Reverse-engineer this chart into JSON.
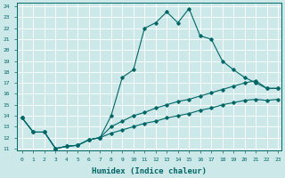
{
  "xlabel": "Humidex (Indice chaleur)",
  "ylabel": "",
  "bg_color": "#cce8e8",
  "grid_color": "#ffffff",
  "line_color": "#006666",
  "xlim": [
    -0.5,
    23.3
  ],
  "ylim": [
    10.8,
    24.3
  ],
  "yticks": [
    11,
    12,
    13,
    14,
    15,
    16,
    17,
    18,
    19,
    20,
    21,
    22,
    23,
    24
  ],
  "xticks": [
    0,
    1,
    2,
    3,
    4,
    5,
    6,
    7,
    8,
    9,
    10,
    11,
    12,
    13,
    14,
    15,
    16,
    17,
    18,
    19,
    20,
    21,
    22,
    23
  ],
  "line1_x": [
    0,
    1,
    2,
    3,
    4,
    5,
    6,
    7,
    8,
    9,
    10,
    11,
    12,
    13,
    14,
    15,
    16,
    17,
    18,
    19,
    20,
    21,
    22,
    23
  ],
  "line1_y": [
    13.8,
    12.5,
    12.5,
    11.0,
    11.2,
    11.3,
    11.8,
    12.0,
    14.0,
    17.5,
    18.2,
    22.0,
    22.5,
    23.5,
    22.5,
    23.8,
    21.3,
    21.0,
    19.0,
    18.2,
    17.5,
    17.0,
    16.5,
    16.5
  ],
  "line2_x": [
    0,
    1,
    2,
    3,
    4,
    5,
    6,
    7,
    8,
    9,
    10,
    11,
    12,
    13,
    14,
    15,
    16,
    17,
    18,
    19,
    20,
    21,
    22,
    23
  ],
  "line2_y": [
    13.8,
    12.5,
    12.5,
    11.0,
    11.2,
    11.3,
    11.8,
    12.0,
    13.0,
    13.5,
    14.0,
    14.3,
    14.7,
    15.0,
    15.3,
    15.5,
    15.8,
    16.1,
    16.4,
    16.7,
    17.0,
    17.2,
    16.5,
    16.5
  ],
  "line3_x": [
    0,
    1,
    2,
    3,
    4,
    5,
    6,
    7,
    8,
    9,
    10,
    11,
    12,
    13,
    14,
    15,
    16,
    17,
    18,
    19,
    20,
    21,
    22,
    23
  ],
  "line3_y": [
    13.8,
    12.5,
    12.5,
    11.0,
    11.2,
    11.3,
    11.8,
    12.0,
    12.4,
    12.7,
    13.0,
    13.3,
    13.5,
    13.8,
    14.0,
    14.2,
    14.5,
    14.7,
    15.0,
    15.2,
    15.4,
    15.5,
    15.4,
    15.5
  ]
}
